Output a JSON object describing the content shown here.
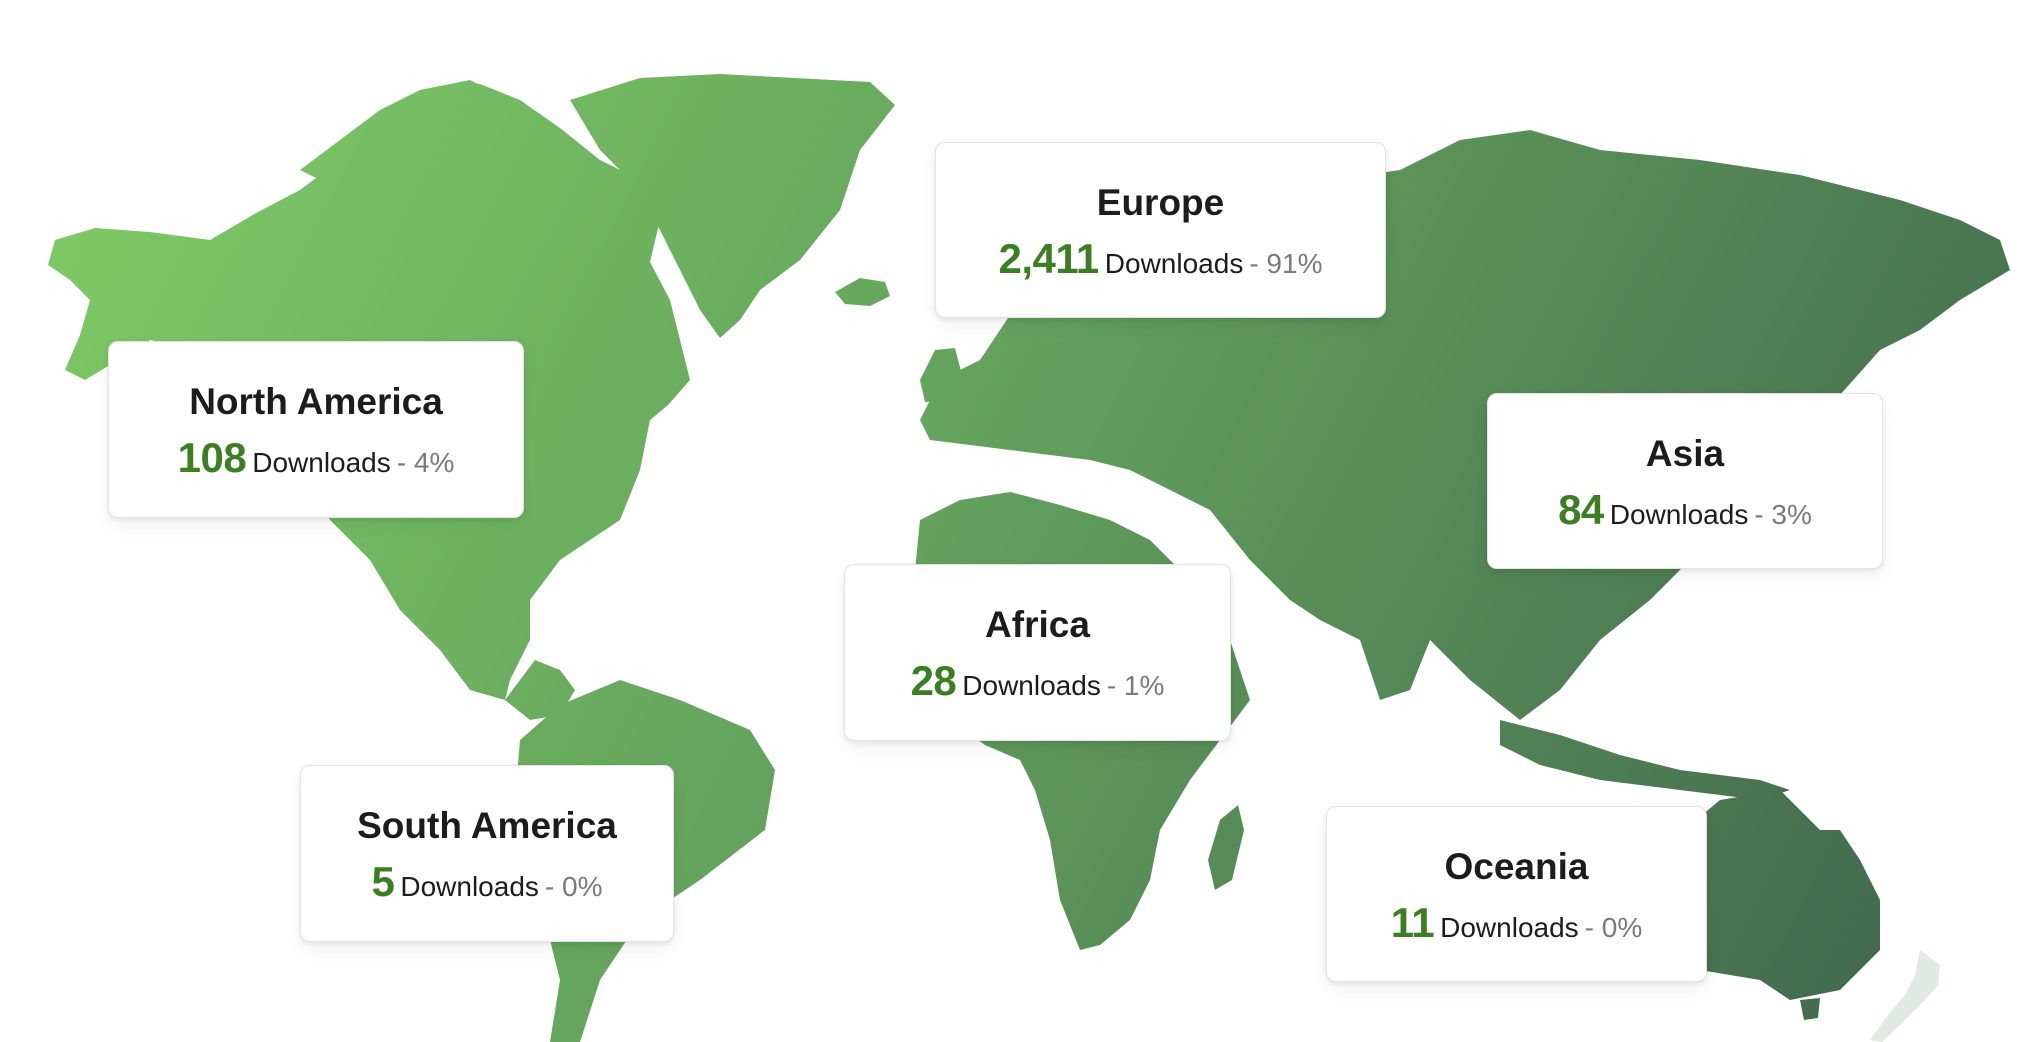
{
  "theme": {
    "gradient_start": "#82cf66",
    "gradient_end": "#3e614c",
    "count_color": "#3c7f22"
  },
  "regions": [
    {
      "id": "north-america",
      "name": "North America",
      "downloads": "108",
      "label": "Downloads",
      "percent": "- 4%"
    },
    {
      "id": "europe",
      "name": "Europe",
      "downloads": "2,411",
      "label": "Downloads",
      "percent": "- 91%"
    },
    {
      "id": "asia",
      "name": "Asia",
      "downloads": "84",
      "label": "Downloads",
      "percent": "- 3%"
    },
    {
      "id": "africa",
      "name": "Africa",
      "downloads": "28",
      "label": "Downloads",
      "percent": "- 1%"
    },
    {
      "id": "south-america",
      "name": "South America",
      "downloads": "5",
      "label": "Downloads",
      "percent": "- 0%"
    },
    {
      "id": "oceania",
      "name": "Oceania",
      "downloads": "11",
      "label": "Downloads",
      "percent": "- 0%"
    }
  ]
}
